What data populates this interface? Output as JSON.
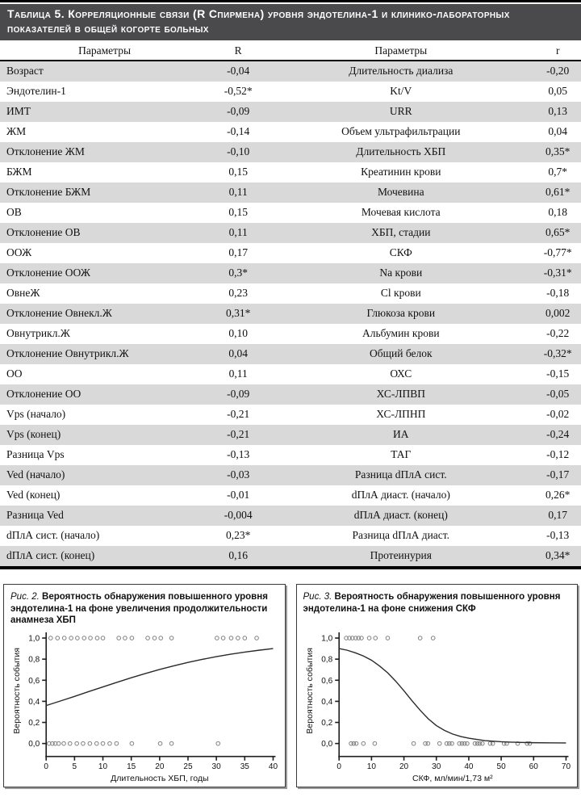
{
  "colors": {
    "caption_bg": "#4a4a4c",
    "caption_text": "#ffffff",
    "row_stripe": "#d9d9d9",
    "axis": "#1f1f1f",
    "curve": "#2a2a2a",
    "point_stroke": "#7f7f7f"
  },
  "table": {
    "title": "Таблица 5. Корреляционные связи (R Спирмена) уровня эндотелина-1 и клинико-лабораторных показателей в общей когорте больных",
    "columns": [
      "Параметры",
      "R",
      "Параметры",
      "r"
    ],
    "rows": [
      [
        "Возраст",
        "-0,04",
        "Длительность диализа",
        "-0,20"
      ],
      [
        "Эндотелин-1",
        "-0,52*",
        "Kt/V",
        "0,05"
      ],
      [
        "ИМТ",
        "-0,09",
        "URR",
        "0,13"
      ],
      [
        "ЖМ",
        "-0,14",
        "Объем ультрафильтрации",
        "0,04"
      ],
      [
        "Отклонение ЖМ",
        "-0,10",
        "Длительность ХБП",
        "0,35*"
      ],
      [
        "БЖМ",
        "0,15",
        "Креатинин крови",
        "0,7*"
      ],
      [
        "Отклонение БЖМ",
        "0,11",
        "Мочевина",
        "0,61*"
      ],
      [
        "ОВ",
        "0,15",
        "Мочевая кислота",
        "0,18"
      ],
      [
        "Отклонение ОВ",
        "0,11",
        "ХБП, стадии",
        "0,65*"
      ],
      [
        "ООЖ",
        "0,17",
        "СКФ",
        "-0,77*"
      ],
      [
        "Отклонение ООЖ",
        "0,3*",
        "Na крови",
        "-0,31*"
      ],
      [
        "ОвнеЖ",
        "0,23",
        "Cl крови",
        "-0,18"
      ],
      [
        "Отклонение Овнекл.Ж",
        "0,31*",
        "Глюкоза крови",
        "0,002"
      ],
      [
        "Овнутрикл.Ж",
        "0,10",
        "Альбумин крови",
        "-0,22"
      ],
      [
        "Отклонение Овнутрикл.Ж",
        "0,04",
        "Общий белок",
        "-0,32*"
      ],
      [
        "ОО",
        "0,11",
        "ОХС",
        "-0,15"
      ],
      [
        "Отклонение ОО",
        "-0,09",
        "ХС-ЛПВП",
        "-0,05"
      ],
      [
        "Vps (начало)",
        "-0,21",
        "ХС-ЛПНП",
        "-0,02"
      ],
      [
        "Vps (конец)",
        "-0,21",
        "ИА",
        "-0,24"
      ],
      [
        "Разница Vps",
        "-0,13",
        "ТАГ",
        "-0,12"
      ],
      [
        "Ved (начало)",
        "-0,03",
        "Разница dПлА сист.",
        "-0,17"
      ],
      [
        "Ved (конец)",
        "-0,01",
        "dПлА диаст. (начало)",
        "0,26*"
      ],
      [
        "Разница Ved",
        "-0,004",
        "dПлА диаст. (конец)",
        "0,17"
      ],
      [
        "dПлА сист. (начало)",
        "0,23*",
        "Разница dПлА диаст.",
        "-0,13"
      ],
      [
        "dПлА сист. (конец)",
        "0,16",
        "Протеинурия",
        "0,34*"
      ]
    ]
  },
  "figures": [
    {
      "label": "Рис. 2.",
      "title": "Вероятность обнаружения повышенного уровня эндотелина-1 на фоне увеличения продолжительности анамнеза ХБП",
      "chart_data": {
        "type": "scatter",
        "xlabel": "Длительность ХБП, годы",
        "ylabel": "Вероятность события",
        "xlim": [
          0,
          40
        ],
        "ylim": [
          0,
          1
        ],
        "x_ticks": [
          0,
          5,
          10,
          15,
          20,
          25,
          30,
          35,
          40
        ],
        "y_tick_values": [
          0,
          0.2,
          0.4,
          0.6,
          0.8,
          1.0
        ],
        "y_tick_labels": [
          "0,0",
          "0,2",
          "0,4",
          "0,6",
          "0,8",
          "1,0"
        ],
        "points_y1": [
          0.8,
          2,
          3.2,
          4.4,
          5.5,
          6.7,
          7.8,
          9,
          10,
          12.8,
          13.9,
          15.1,
          17.9,
          19.1,
          20.2,
          22.1,
          30.1,
          31.2,
          32.6,
          33.8,
          35,
          37.1
        ],
        "points_y0": [
          0.5,
          1.1,
          1.6,
          2.2,
          3.1,
          4.2,
          5.4,
          6.5,
          7.7,
          8.9,
          10,
          11.2,
          12.4,
          15.1,
          20.1,
          22.1,
          30.3
        ],
        "curve": [
          [
            0,
            0.36
          ],
          [
            2.5,
            0.403
          ],
          [
            5,
            0.447
          ],
          [
            7.5,
            0.492
          ],
          [
            10,
            0.537
          ],
          [
            12.5,
            0.581
          ],
          [
            15,
            0.624
          ],
          [
            17.5,
            0.664
          ],
          [
            20,
            0.702
          ],
          [
            22.5,
            0.737
          ],
          [
            25,
            0.769
          ],
          [
            27.5,
            0.798
          ],
          [
            30,
            0.824
          ],
          [
            32.5,
            0.847
          ],
          [
            35,
            0.867
          ],
          [
            37.5,
            0.885
          ],
          [
            40,
            0.901
          ]
        ]
      }
    },
    {
      "label": "Рис. 3.",
      "title": "Вероятность обнаружения повышенного уровня эндотелина-1 на фоне снижения СКФ",
      "chart_data": {
        "type": "scatter",
        "xlabel": "СКФ, мл/мин/1,73 м²",
        "ylabel": "Вероятность события",
        "xlim": [
          0,
          70
        ],
        "ylim": [
          0,
          1
        ],
        "x_ticks": [
          0,
          10,
          20,
          30,
          40,
          50,
          60,
          70
        ],
        "y_tick_values": [
          0,
          0.2,
          0.4,
          0.6,
          0.8,
          1.0
        ],
        "y_tick_labels": [
          "0,0",
          "0,2",
          "0,4",
          "0,6",
          "0,8",
          "1,0"
        ],
        "points_y1": [
          2.2,
          3.2,
          4.1,
          5.1,
          6,
          6.9,
          9.3,
          11.2,
          15,
          25,
          29
        ],
        "points_y0": [
          3.7,
          4.5,
          5.3,
          7.5,
          11,
          23,
          26.6,
          27.4,
          31,
          33.2,
          34,
          34.8,
          37.1,
          37.9,
          38.7,
          39.5,
          41.9,
          42.7,
          43.4,
          44.2,
          46.6,
          47.4,
          50.9,
          51.7,
          55.1,
          58,
          58.8
        ],
        "curve": [
          [
            0,
            0.9
          ],
          [
            2.5,
            0.885
          ],
          [
            5,
            0.86
          ],
          [
            7.5,
            0.83
          ],
          [
            10,
            0.79
          ],
          [
            12.5,
            0.735
          ],
          [
            15,
            0.67
          ],
          [
            17.5,
            0.59
          ],
          [
            20,
            0.5
          ],
          [
            22.5,
            0.405
          ],
          [
            25,
            0.315
          ],
          [
            27.5,
            0.235
          ],
          [
            30,
            0.17
          ],
          [
            32.5,
            0.125
          ],
          [
            35,
            0.09
          ],
          [
            37.5,
            0.067
          ],
          [
            40,
            0.05
          ],
          [
            45,
            0.028
          ],
          [
            50,
            0.017
          ],
          [
            55,
            0.011
          ],
          [
            60,
            0.008
          ],
          [
            65,
            0.006
          ],
          [
            70,
            0.005
          ]
        ]
      }
    }
  ]
}
